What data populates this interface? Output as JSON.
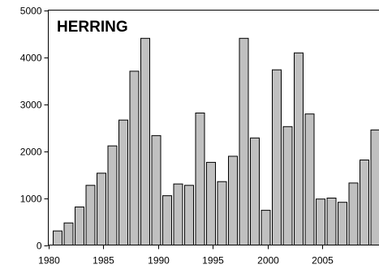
{
  "chart_data": {
    "type": "bar",
    "title": "HERRING",
    "xlabel": "",
    "ylabel": "",
    "ylim": [
      0,
      5000
    ],
    "yticks": [
      0,
      1000,
      2000,
      3000,
      4000,
      5000
    ],
    "ytick_labels": [
      "0",
      "1000",
      "2000",
      "3000",
      "4000",
      "5000"
    ],
    "xticks": [
      1980,
      1985,
      1990,
      1995,
      2000,
      2005
    ],
    "xtick_labels": [
      "1980",
      "1985",
      "1990",
      "1995",
      "2000",
      "2005"
    ],
    "grid": false,
    "bar_color": "#c0c0c0",
    "edge_color": "#000000",
    "categories": [
      1980,
      1981,
      1982,
      1983,
      1984,
      1985,
      1986,
      1987,
      1988,
      1989,
      1990,
      1991,
      1992,
      1993,
      1994,
      1995,
      1996,
      1997,
      1998,
      1999,
      2000,
      2001,
      2002,
      2003,
      2004,
      2005,
      2006,
      2007,
      2008,
      2009
    ],
    "values": [
      300,
      470,
      810,
      1270,
      1530,
      2110,
      2660,
      3700,
      4400,
      2330,
      1050,
      1300,
      1270,
      2810,
      1760,
      1350,
      1890,
      4400,
      2280,
      740,
      3730,
      2520,
      4090,
      2790,
      980,
      1000,
      910,
      1320,
      1810,
      2450
    ]
  }
}
